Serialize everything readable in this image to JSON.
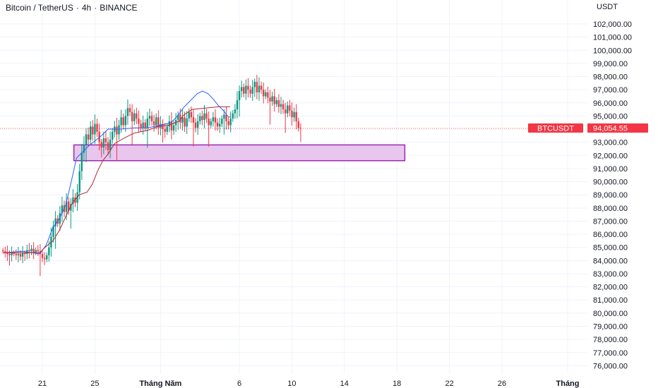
{
  "header": {
    "symbol": "Bitcoin / TetherUS",
    "interval": "4h",
    "exchange": "BINANCE",
    "separator": "·"
  },
  "colors": {
    "up": "#089981",
    "down": "#f23645",
    "blue_line": "#2962ff",
    "red_line": "#b22833",
    "zone_fill": "#e8c6ee",
    "zone_stroke": "#9c27b0",
    "grid": "#f0f3fa",
    "price_tag": "#f23645"
  },
  "chart_data": {
    "type": "candlestick",
    "unit_label": "USDT",
    "y_axis": {
      "min": 75500,
      "max": 102700,
      "ticks": [
        "102,000.00",
        "101,000.00",
        "100,000.00",
        "99,000.00",
        "98,000.00",
        "97,000.00",
        "96,000.00",
        "95,000.00",
        "94,000.00",
        "93,000.00",
        "92,000.00",
        "91,000.00",
        "90,000.00",
        "89,000.00",
        "88,000.00",
        "87,000.00",
        "86,000.00",
        "85,000.00",
        "84,000.00",
        "83,000.00",
        "82,000.00",
        "81,000.00",
        "80,000.00",
        "79,000.00",
        "78,000.00",
        "77,000.00",
        "76,000.00"
      ],
      "tick_values": [
        102000,
        101000,
        100000,
        99000,
        98000,
        97000,
        96000,
        95000,
        94000,
        93000,
        92000,
        91000,
        90000,
        89000,
        88000,
        87000,
        86000,
        85000,
        84000,
        83000,
        82000,
        81000,
        80000,
        79000,
        78000,
        77000,
        76000
      ]
    },
    "x_axis": {
      "labels": [
        {
          "text": "21",
          "day": 21,
          "bold": false
        },
        {
          "text": "25",
          "day": 25,
          "bold": false
        },
        {
          "text": "Tháng Năm",
          "day": 30,
          "bold": true
        },
        {
          "text": "6",
          "day": 36,
          "bold": false
        },
        {
          "text": "10",
          "day": 40,
          "bold": false
        },
        {
          "text": "14",
          "day": 44,
          "bold": false
        },
        {
          "text": "18",
          "day": 48,
          "bold": false
        },
        {
          "text": "22",
          "day": 52,
          "bold": false
        },
        {
          "text": "26",
          "day": 56,
          "bold": false
        },
        {
          "text": "Tháng",
          "day": 61,
          "bold": true
        }
      ]
    },
    "candles_start_day": 18,
    "candles_step_day": 0.1667,
    "closes": [
      84700,
      84600,
      84500,
      84400,
      84600,
      84500,
      84400,
      84500,
      84300,
      84600,
      84500,
      84800,
      84700,
      84900,
      84600,
      84800,
      84700,
      84500,
      84200,
      84100,
      84400,
      85000,
      85800,
      86600,
      87200,
      86800,
      87600,
      88200,
      87700,
      88500,
      87800,
      88300,
      88800,
      88400,
      89200,
      90800,
      92200,
      92800,
      93600,
      93200,
      94200,
      93600,
      94400,
      93800,
      93000,
      92600,
      93300,
      93000,
      92400,
      93200,
      93800,
      94200,
      93600,
      94300,
      94900,
      94300,
      95000,
      95600,
      95300,
      94600,
      95200,
      94800,
      94400,
      94100,
      94500,
      94100,
      94800,
      95000,
      94600,
      94300,
      94900,
      94100,
      94400,
      94000,
      93800,
      94200,
      94600,
      93900,
      94300,
      94700,
      95100,
      94500,
      94900,
      94200,
      94800,
      95300,
      94900,
      94500,
      94100,
      94600,
      95000,
      94700,
      95200,
      94800,
      94300,
      94600,
      94900,
      94500,
      94200,
      94400,
      94800,
      95100,
      94600,
      94300,
      94800,
      95200,
      95500,
      96200,
      96900,
      97200,
      96700,
      97300,
      97000,
      96700,
      97200,
      97600,
      96800,
      97300,
      97000,
      96500,
      96800,
      96400,
      96100,
      96500,
      95900,
      96200,
      95700,
      95900,
      95500,
      95200,
      95800,
      95400,
      94900,
      95300,
      94600,
      94100,
      94054.55
    ],
    "blue_line": [
      [
        18,
        84600
      ],
      [
        19.5,
        84700
      ],
      [
        20.8,
        84500
      ],
      [
        21.3,
        85200
      ],
      [
        21.8,
        86500
      ],
      [
        22.3,
        87200
      ],
      [
        22.8,
        88300
      ],
      [
        23.2,
        90000
      ],
      [
        23.6,
        91800
      ],
      [
        24.0,
        92200
      ],
      [
        24.5,
        92700
      ],
      [
        25.0,
        93100
      ],
      [
        25.5,
        93500
      ],
      [
        26.0,
        94000
      ],
      [
        27.0,
        94000
      ],
      [
        28.0,
        94100
      ],
      [
        29.0,
        94100
      ],
      [
        30.0,
        94300
      ],
      [
        30.8,
        94500
      ],
      [
        31.3,
        95000
      ],
      [
        31.8,
        95700
      ],
      [
        32.3,
        96200
      ],
      [
        32.8,
        96700
      ],
      [
        33.2,
        96900
      ],
      [
        33.6,
        96700
      ],
      [
        34.0,
        96300
      ],
      [
        34.4,
        95800
      ],
      [
        34.8,
        95400
      ],
      [
        35.1,
        95000
      ],
      [
        35.3,
        94900
      ]
    ],
    "red_line": [
      [
        18,
        84600
      ],
      [
        20.8,
        84600
      ],
      [
        21.2,
        85000
      ],
      [
        21.8,
        85500
      ],
      [
        22.3,
        86300
      ],
      [
        22.8,
        87400
      ],
      [
        23.3,
        88400
      ],
      [
        23.8,
        89000
      ],
      [
        24.4,
        89200
      ],
      [
        24.8,
        89800
      ],
      [
        25.2,
        90800
      ],
      [
        25.6,
        91600
      ],
      [
        26.0,
        92100
      ],
      [
        26.5,
        92900
      ],
      [
        27.2,
        93300
      ],
      [
        28.0,
        93700
      ],
      [
        29.0,
        93900
      ],
      [
        29.8,
        94200
      ],
      [
        30.6,
        94300
      ],
      [
        31.4,
        94600
      ],
      [
        31.8,
        95100
      ],
      [
        32.4,
        95500
      ],
      [
        34.4,
        95700
      ],
      [
        35.3,
        95700
      ]
    ],
    "zone": {
      "day_start": 23.4,
      "day_end": 48.6,
      "price_top": 92800,
      "price_bottom": 91600
    },
    "last_price": {
      "symbol_tag": "BTCUSDT",
      "value": "94,054.55",
      "price": 94054.55
    }
  }
}
